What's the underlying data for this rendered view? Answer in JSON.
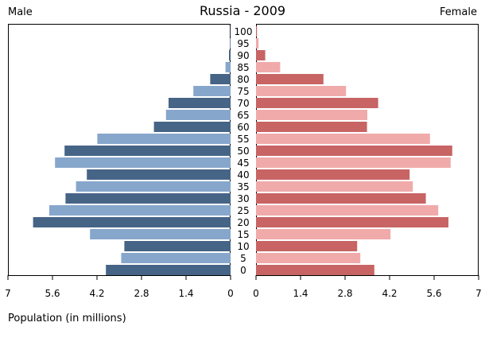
{
  "chart_data": {
    "type": "bar",
    "title": "Russia - 2009",
    "left_label": "Male",
    "right_label": "Female",
    "xlabel": "Population (in millions)",
    "xlim": [
      0,
      7
    ],
    "ticks": [
      "7",
      "5.6",
      "4.2",
      "2.8",
      "1.4",
      "0"
    ],
    "ticks_right": [
      "0",
      "1.4",
      "2.8",
      "4.2",
      "5.6",
      "7"
    ],
    "categories": [
      "100",
      "95",
      "90",
      "85",
      "80",
      "75",
      "70",
      "65",
      "60",
      "55",
      "50",
      "45",
      "40",
      "35",
      "30",
      "25",
      "20",
      "15",
      "10",
      "5",
      "0"
    ],
    "series": [
      {
        "name": "Male",
        "values": [
          0.01,
          0.02,
          0.05,
          0.16,
          0.64,
          1.17,
          1.95,
          2.03,
          2.41,
          4.19,
          5.22,
          5.52,
          4.52,
          4.86,
          5.19,
          5.7,
          6.21,
          4.42,
          3.34,
          3.44,
          3.92
        ],
        "colors": [
          "#466486",
          "#87a6cb"
        ]
      },
      {
        "name": "Female",
        "values": [
          0.03,
          0.08,
          0.29,
          0.76,
          2.12,
          2.83,
          3.84,
          3.5,
          3.49,
          5.47,
          6.17,
          6.12,
          4.83,
          4.93,
          5.34,
          5.73,
          6.05,
          4.23,
          3.18,
          3.28,
          3.72
        ],
        "colors": [
          "#c86464",
          "#f0aaaa"
        ]
      }
    ],
    "grid": false
  }
}
